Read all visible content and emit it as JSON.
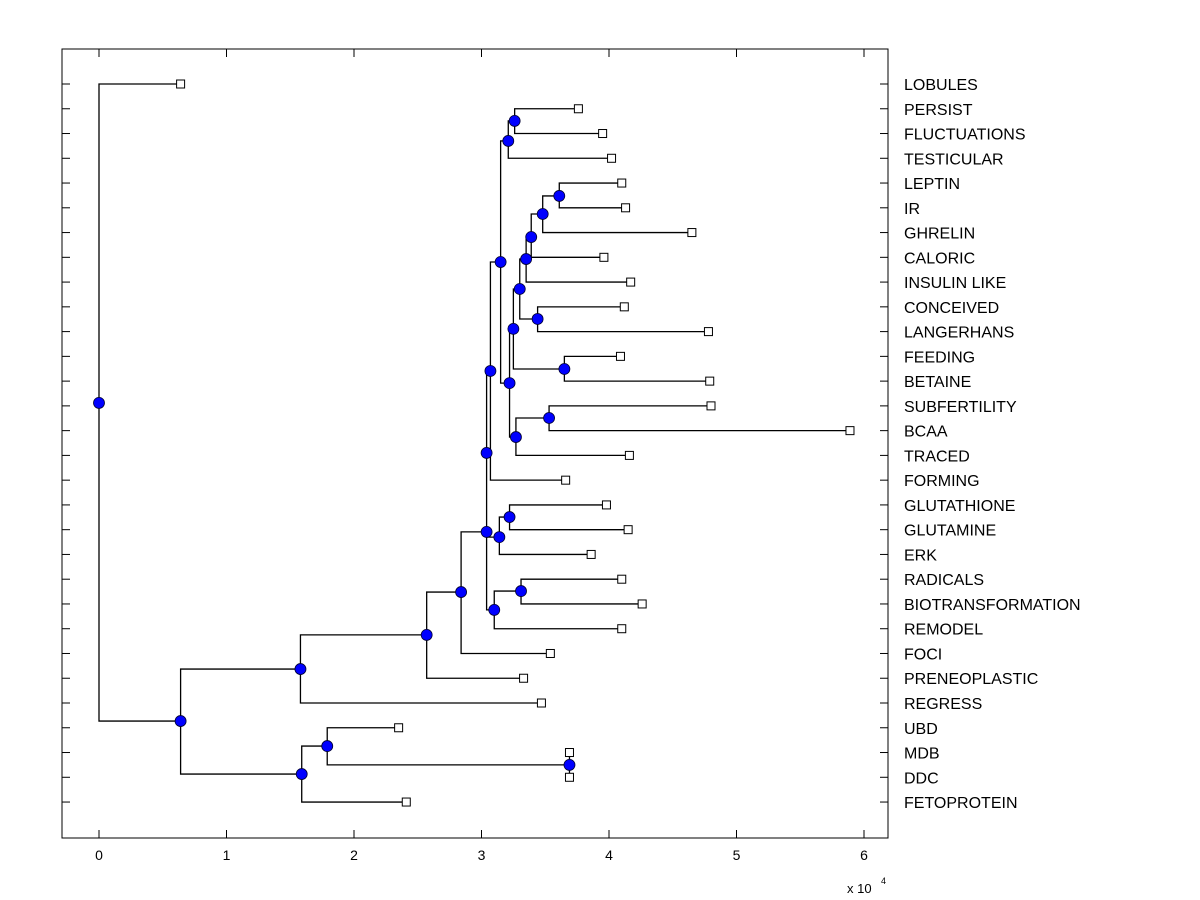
{
  "chart_data": {
    "type": "dendrogram",
    "title": "",
    "xlabel": "",
    "ylabel": "",
    "x_scale_label": "x 10",
    "x_scale_exponent": "4",
    "xlim": [
      -0.29,
      6.19
    ],
    "xticks": [
      0,
      1,
      2,
      3,
      4,
      5,
      6
    ],
    "xtick_labels": [
      "0",
      "1",
      "2",
      "3",
      "4",
      "5",
      "6"
    ],
    "grid": false,
    "colors": {
      "node_fill": "#0000ff",
      "line": "#000000",
      "leaf_fill": "#ffffff"
    },
    "leaves": [
      {
        "id": "LOBULES",
        "label": "LOBULES",
        "x": 0.64
      },
      {
        "id": "PERSIST",
        "label": "PERSIST",
        "x": 3.76
      },
      {
        "id": "FLUCTUATIONS",
        "label": "FLUCTUATIONS",
        "x": 3.95
      },
      {
        "id": "TESTICULAR",
        "label": "TESTICULAR",
        "x": 4.02
      },
      {
        "id": "LEPTIN",
        "label": "LEPTIN",
        "x": 4.1
      },
      {
        "id": "IR",
        "label": "IR",
        "x": 4.13
      },
      {
        "id": "GHRELIN",
        "label": "GHRELIN",
        "x": 4.65
      },
      {
        "id": "CALORIC",
        "label": "CALORIC",
        "x": 3.96
      },
      {
        "id": "INSULIN_LIKE",
        "label": "INSULIN LIKE",
        "x": 4.17
      },
      {
        "id": "CONCEIVED",
        "label": "CONCEIVED",
        "x": 4.12
      },
      {
        "id": "LANGERHANS",
        "label": "LANGERHANS",
        "x": 4.78
      },
      {
        "id": "FEEDING",
        "label": "FEEDING",
        "x": 4.09
      },
      {
        "id": "BETAINE",
        "label": "BETAINE",
        "x": 4.79
      },
      {
        "id": "SUBFERTILITY",
        "label": "SUBFERTILITY",
        "x": 4.8
      },
      {
        "id": "BCAA",
        "label": "BCAA",
        "x": 5.89
      },
      {
        "id": "TRACED",
        "label": "TRACED",
        "x": 4.16
      },
      {
        "id": "FORMING",
        "label": "FORMING",
        "x": 3.66
      },
      {
        "id": "GLUTATHIONE",
        "label": "GLUTATHIONE",
        "x": 3.98
      },
      {
        "id": "GLUTAMINE",
        "label": "GLUTAMINE",
        "x": 4.15
      },
      {
        "id": "ERK",
        "label": "ERK",
        "x": 3.86
      },
      {
        "id": "RADICALS",
        "label": "RADICALS",
        "x": 4.1
      },
      {
        "id": "BIOTRANSFORMATION",
        "label": "BIOTRANSFORMATION",
        "x": 4.26
      },
      {
        "id": "REMODEL",
        "label": "REMODEL",
        "x": 4.1
      },
      {
        "id": "FOCI",
        "label": "FOCI",
        "x": 3.54
      },
      {
        "id": "PRENEOPLASTIC",
        "label": "PRENEOPLASTIC",
        "x": 3.33
      },
      {
        "id": "REGRESS",
        "label": "REGRESS",
        "x": 3.47
      },
      {
        "id": "UBD",
        "label": "UBD",
        "x": 2.35
      },
      {
        "id": "MDB",
        "label": "MDB",
        "x": 3.69
      },
      {
        "id": "DDC",
        "label": "DDC",
        "x": 3.69
      },
      {
        "id": "FETOPROTEIN",
        "label": "FETOPROTEIN",
        "x": 2.41
      }
    ],
    "internal_nodes": [
      {
        "id": "root",
        "x": 0.0,
        "row": 12.88
      },
      {
        "id": "O",
        "x": 0.64,
        "row": 25.73
      },
      {
        "id": "N",
        "x": 1.58,
        "row": 23.63
      },
      {
        "id": "M",
        "x": 2.57,
        "row": 22.25
      },
      {
        "id": "J",
        "x": 2.84,
        "row": 20.52
      },
      {
        "id": "I",
        "x": 3.04,
        "row": 18.09
      },
      {
        "id": "H",
        "x": 3.04,
        "row": 14.9
      },
      {
        "id": "F",
        "x": 3.07,
        "row": 11.59
      },
      {
        "id": "A",
        "x": 3.15,
        "row": 7.19
      },
      {
        "id": "T",
        "x": 3.21,
        "row": 2.3
      },
      {
        "id": "U",
        "x": 3.26,
        "row": 1.49
      },
      {
        "id": "G",
        "x": 3.22,
        "row": 12.08
      },
      {
        "id": "E",
        "x": 3.25,
        "row": 9.89
      },
      {
        "id": "C",
        "x": 3.3,
        "row": 8.28
      },
      {
        "id": "B",
        "x": 3.35,
        "row": 7.07
      },
      {
        "id": "V",
        "x": 3.39,
        "row": 6.18
      },
      {
        "id": "W",
        "x": 3.48,
        "row": 5.25
      },
      {
        "id": "X",
        "x": 3.61,
        "row": 4.52
      },
      {
        "id": "D",
        "x": 3.44,
        "row": 9.49
      },
      {
        "id": "Y",
        "x": 3.65,
        "row": 11.51
      },
      {
        "id": "Z",
        "x": 3.27,
        "row": 14.26
      },
      {
        "id": "SS",
        "x": 3.53,
        "row": 13.49
      },
      {
        "id": "K",
        "x": 3.14,
        "row": 18.3
      },
      {
        "id": "L",
        "x": 3.22,
        "row": 17.49
      },
      {
        "id": "S",
        "x": 3.1,
        "row": 21.24
      },
      {
        "id": "RR",
        "x": 3.31,
        "row": 20.48
      },
      {
        "id": "P",
        "x": 1.59,
        "row": 27.87
      },
      {
        "id": "Q",
        "x": 1.79,
        "row": 26.74
      },
      {
        "id": "R",
        "x": 3.69,
        "row": 27.5
      }
    ],
    "edges": [
      [
        "root",
        "LOBULES"
      ],
      [
        "root",
        "O"
      ],
      [
        "O",
        "N"
      ],
      [
        "O",
        "P"
      ],
      [
        "N",
        "M"
      ],
      [
        "N",
        "REGRESS"
      ],
      [
        "M",
        "J"
      ],
      [
        "M",
        "PRENEOPLASTIC"
      ],
      [
        "J",
        "I"
      ],
      [
        "J",
        "FOCI"
      ],
      [
        "I",
        "H"
      ],
      [
        "I",
        "K"
      ],
      [
        "I",
        "S"
      ],
      [
        "H",
        "F"
      ],
      [
        "F",
        "A"
      ],
      [
        "F",
        "FORMING"
      ],
      [
        "A",
        "T"
      ],
      [
        "A",
        "G"
      ],
      [
        "T",
        "U"
      ],
      [
        "T",
        "TESTICULAR"
      ],
      [
        "U",
        "PERSIST"
      ],
      [
        "U",
        "FLUCTUATIONS"
      ],
      [
        "G",
        "E"
      ],
      [
        "G",
        "Z"
      ],
      [
        "E",
        "C"
      ],
      [
        "E",
        "Y"
      ],
      [
        "C",
        "B"
      ],
      [
        "C",
        "D"
      ],
      [
        "B",
        "V"
      ],
      [
        "B",
        "INSULIN_LIKE"
      ],
      [
        "V",
        "W"
      ],
      [
        "V",
        "CALORIC"
      ],
      [
        "W",
        "X"
      ],
      [
        "W",
        "GHRELIN"
      ],
      [
        "X",
        "LEPTIN"
      ],
      [
        "X",
        "IR"
      ],
      [
        "D",
        "CONCEIVED"
      ],
      [
        "D",
        "LANGERHANS"
      ],
      [
        "Y",
        "FEEDING"
      ],
      [
        "Y",
        "BETAINE"
      ],
      [
        "Z",
        "SS"
      ],
      [
        "Z",
        "TRACED"
      ],
      [
        "SS",
        "SUBFERTILITY"
      ],
      [
        "SS",
        "BCAA"
      ],
      [
        "K",
        "L"
      ],
      [
        "K",
        "ERK"
      ],
      [
        "L",
        "GLUTATHIONE"
      ],
      [
        "L",
        "GLUTAMINE"
      ],
      [
        "S",
        "RR"
      ],
      [
        "S",
        "REMODEL"
      ],
      [
        "RR",
        "RADICALS"
      ],
      [
        "RR",
        "BIOTRANSFORMATION"
      ],
      [
        "P",
        "Q"
      ],
      [
        "P",
        "FETOPROTEIN"
      ],
      [
        "Q",
        "UBD"
      ],
      [
        "Q",
        "R"
      ],
      [
        "R",
        "MDB"
      ],
      [
        "R",
        "DDC"
      ]
    ]
  }
}
